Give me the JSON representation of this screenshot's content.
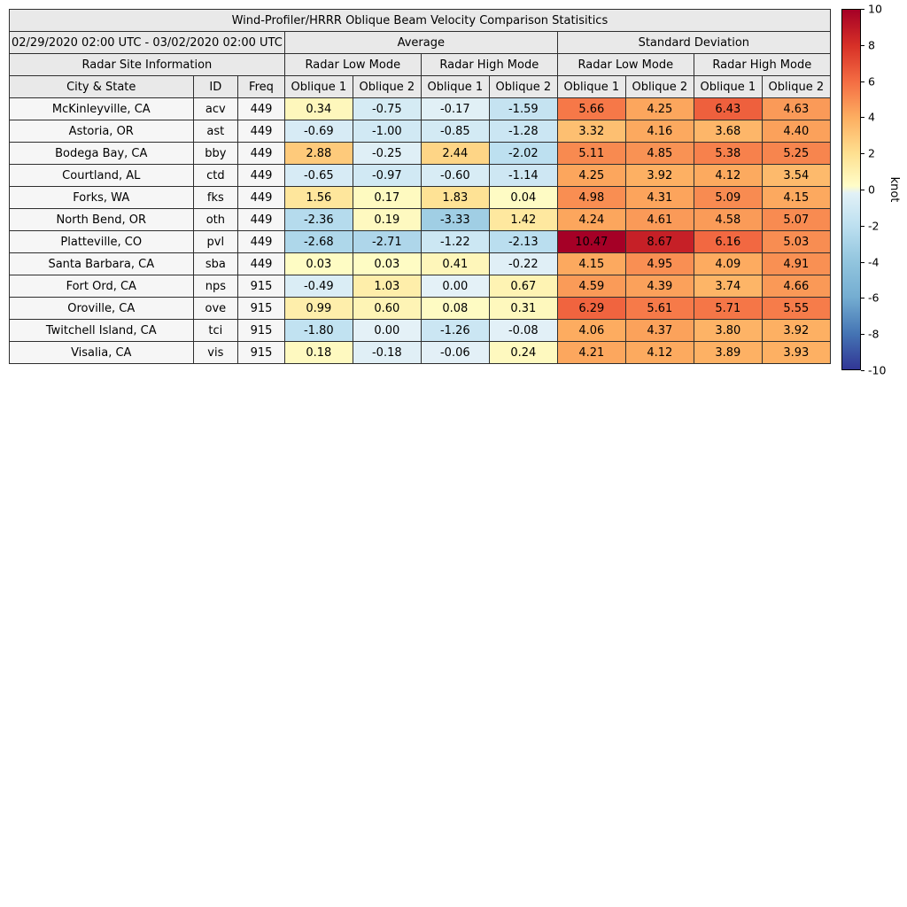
{
  "title": "Wind-Profiler/HRRR Oblique Beam Velocity Comparison Statisitics",
  "header": {
    "date_range": "02/29/2020 02:00 UTC - 03/02/2020 02:00 UTC",
    "group_average": "Average",
    "group_std": "Standard Deviation",
    "site_info": "Radar Site Information",
    "mode_headers": [
      "Radar Low Mode",
      "Radar High Mode",
      "Radar Low Mode",
      "Radar High Mode"
    ],
    "col_headers": [
      "City & State",
      "ID",
      "Freq",
      "Oblique 1",
      "Oblique 2",
      "Oblique 1",
      "Oblique 2",
      "Oblique 1",
      "Oblique 2",
      "Oblique 1",
      "Oblique 2"
    ]
  },
  "chart_data": {
    "type": "table",
    "title": "Wind-Profiler/HRRR Oblique Beam Velocity Comparison Statisitics",
    "value_columns": [
      "Average Radar Low Mode Oblique 1",
      "Average Radar Low Mode Oblique 2",
      "Average Radar High Mode Oblique 1",
      "Average Radar High Mode Oblique 2",
      "Std Dev Radar Low Mode Oblique 1",
      "Std Dev Radar Low Mode Oblique 2",
      "Std Dev Radar High Mode Oblique 1",
      "Std Dev Radar High Mode Oblique 2"
    ],
    "rows": [
      {
        "city": "McKinleyville, CA",
        "id": "acv",
        "freq": "449",
        "values": [
          0.34,
          -0.75,
          -0.17,
          -1.59,
          5.66,
          4.25,
          6.43,
          4.63
        ]
      },
      {
        "city": "Astoria, OR",
        "id": "ast",
        "freq": "449",
        "values": [
          -0.69,
          -1.0,
          -0.85,
          -1.28,
          3.32,
          4.16,
          3.68,
          4.4
        ]
      },
      {
        "city": "Bodega Bay, CA",
        "id": "bby",
        "freq": "449",
        "values": [
          2.88,
          -0.25,
          2.44,
          -2.02,
          5.11,
          4.85,
          5.38,
          5.25
        ]
      },
      {
        "city": "Courtland, AL",
        "id": "ctd",
        "freq": "449",
        "values": [
          -0.65,
          -0.97,
          -0.6,
          -1.14,
          4.25,
          3.92,
          4.12,
          3.54
        ]
      },
      {
        "city": "Forks, WA",
        "id": "fks",
        "freq": "449",
        "values": [
          1.56,
          0.17,
          1.83,
          0.04,
          4.98,
          4.31,
          5.09,
          4.15
        ]
      },
      {
        "city": "North Bend, OR",
        "id": "oth",
        "freq": "449",
        "values": [
          -2.36,
          0.19,
          -3.33,
          1.42,
          4.24,
          4.61,
          4.58,
          5.07
        ]
      },
      {
        "city": "Platteville, CO",
        "id": "pvl",
        "freq": "449",
        "values": [
          -2.68,
          -2.71,
          -1.22,
          -2.13,
          10.47,
          8.67,
          6.16,
          5.03
        ]
      },
      {
        "city": "Santa Barbara, CA",
        "id": "sba",
        "freq": "449",
        "values": [
          0.03,
          0.03,
          0.41,
          -0.22,
          4.15,
          4.95,
          4.09,
          4.91
        ]
      },
      {
        "city": "Fort Ord, CA",
        "id": "nps",
        "freq": "915",
        "values": [
          -0.49,
          1.03,
          0.0,
          0.67,
          4.59,
          4.39,
          3.74,
          4.66
        ]
      },
      {
        "city": "Oroville, CA",
        "id": "ove",
        "freq": "915",
        "values": [
          0.99,
          0.6,
          0.08,
          0.31,
          6.29,
          5.61,
          5.71,
          5.55
        ]
      },
      {
        "city": "Twitchell Island, CA",
        "id": "tci",
        "freq": "915",
        "values": [
          -1.8,
          0.0,
          -1.26,
          -0.08,
          4.06,
          4.37,
          3.8,
          3.92
        ]
      },
      {
        "city": "Visalia, CA",
        "id": "vis",
        "freq": "915",
        "values": [
          0.18,
          -0.18,
          -0.06,
          0.24,
          4.21,
          4.12,
          3.89,
          3.93
        ]
      }
    ],
    "colorbar": {
      "label": "knot",
      "ticks": [
        10,
        8,
        6,
        4,
        2,
        0,
        -2,
        -4,
        -6,
        -8,
        -10
      ],
      "range": [
        -10,
        10
      ],
      "colormap_hint": {
        "positive_high": "#a50026",
        "positive_mid": "#fdae61",
        "zero_warm": "#fffdc8",
        "zero_cool": "#e2f1f7",
        "negative_mid": "#92c5de",
        "negative_high": "#313695"
      }
    }
  }
}
